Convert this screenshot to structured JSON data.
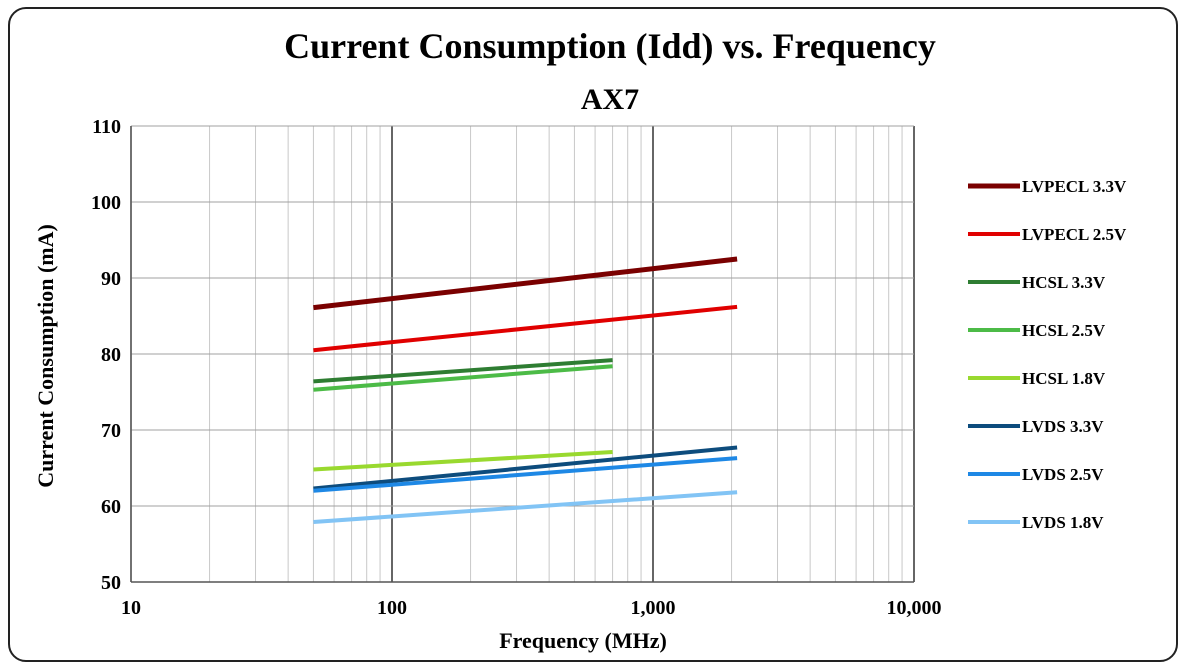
{
  "chart_data": {
    "type": "line",
    "title": "Current Consumption (Idd) vs. Frequency",
    "subtitle": "AX7",
    "xlabel": "Frequency (MHz)",
    "ylabel": "Current Consumption (mA)",
    "x_scale": "log",
    "xlim": [
      10,
      10000
    ],
    "ylim": [
      50,
      110
    ],
    "x_ticks": [
      "10",
      "100",
      "1,000",
      "10,000"
    ],
    "y_ticks": [
      "50",
      "60",
      "70",
      "80",
      "90",
      "100",
      "110"
    ],
    "grid": true,
    "legend_position": "right",
    "series": [
      {
        "name": "LVPECL 3.3V",
        "color": "#7a0000",
        "width": 5,
        "x": [
          50,
          2100
        ],
        "y": [
          86.1,
          92.5
        ]
      },
      {
        "name": "LVPECL 2.5V",
        "color": "#e00000",
        "width": 4,
        "x": [
          50,
          2100
        ],
        "y": [
          80.5,
          86.2
        ]
      },
      {
        "name": "HCSL 3.3V",
        "color": "#2e7d32",
        "width": 4,
        "x": [
          50,
          700
        ],
        "y": [
          76.4,
          79.2
        ]
      },
      {
        "name": "HCSL 2.5V",
        "color": "#4cbb47",
        "width": 4,
        "x": [
          50,
          700
        ],
        "y": [
          75.3,
          78.4
        ]
      },
      {
        "name": "HCSL 1.8V",
        "color": "#99d92f",
        "width": 4,
        "x": [
          50,
          700
        ],
        "y": [
          64.8,
          67.1
        ]
      },
      {
        "name": "LVDS 3.3V",
        "color": "#0d4c7d",
        "width": 4,
        "x": [
          50,
          2100
        ],
        "y": [
          62.3,
          67.7
        ]
      },
      {
        "name": "LVDS 2.5V",
        "color": "#1e88e5",
        "width": 4,
        "x": [
          50,
          2100
        ],
        "y": [
          62.0,
          66.3
        ]
      },
      {
        "name": "LVDS 1.8V",
        "color": "#82c4f5",
        "width": 4,
        "x": [
          50,
          2100
        ],
        "y": [
          57.9,
          61.8
        ]
      }
    ]
  }
}
